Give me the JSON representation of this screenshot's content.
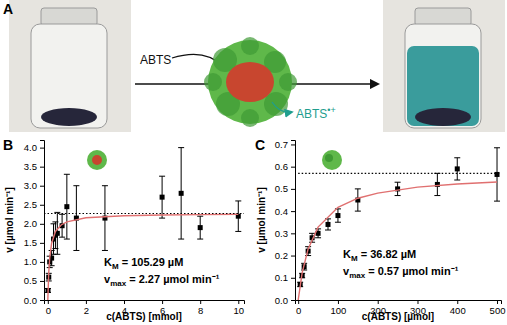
{
  "panel_a": {
    "label": "A",
    "substrate": "ABTS",
    "product": "ABTS",
    "product_charge": "•+"
  },
  "chart_data": [
    {
      "type": "scatter",
      "panel": "B",
      "x_label": "c(ABTS) [mmol]",
      "y_label": "v [µmol min⁻¹]",
      "xlim": [
        -0.2,
        10.3
      ],
      "xticks": [
        0,
        2,
        4,
        6,
        8,
        10
      ],
      "ylim": [
        0,
        4.2
      ],
      "yticks": [
        {
          "value": 0,
          "label": "0.0"
        },
        {
          "value": 0.5,
          "label": "0.5"
        },
        {
          "value": 1,
          "label": "1.0"
        },
        {
          "value": 1.5,
          "label": "1.5"
        },
        {
          "value": 2,
          "label": "2.0"
        },
        {
          "value": 2.5,
          "label": "2.5"
        },
        {
          "value": 3,
          "label": "3.0"
        },
        {
          "value": 3.5,
          "label": "3.5"
        },
        {
          "value": 4,
          "label": "4.0"
        }
      ],
      "grid": false,
      "annotations": [
        {
          "symbol": "K",
          "subscript": "M",
          "text": " = 105.29 µM"
        },
        {
          "symbol": "v",
          "subscript": "max",
          "text": " = 2.27 µmol min⁻¹"
        }
      ],
      "series": [
        {
          "type": "scatter",
          "color": "#000000",
          "marker": "square",
          "x": [
            0.01,
            0.05,
            0.1,
            0.2,
            0.3,
            0.4,
            0.5,
            0.75,
            1,
            1.5,
            3,
            6,
            7,
            8,
            10
          ],
          "values": [
            0.25,
            0.6,
            1.0,
            1.1,
            1.6,
            1.7,
            1.75,
            1.95,
            2.45,
            2.15,
            2.15,
            2.7,
            2.8,
            1.9,
            2.2
          ],
          "errors": [
            0.05,
            0.1,
            0.15,
            0.2,
            0.4,
            0.35,
            0.55,
            0.3,
            0.85,
            0.85,
            0.85,
            0.55,
            1.2,
            0.3,
            0.4
          ]
        },
        {
          "type": "line",
          "color": "#e07070",
          "line_style": "solid",
          "x": [
            0,
            0.05,
            0.1,
            0.2,
            0.4,
            0.7,
            1,
            2,
            4,
            6,
            8,
            10
          ],
          "values": [
            0,
            0.73,
            1.11,
            1.49,
            1.8,
            1.97,
            2.05,
            2.16,
            2.21,
            2.23,
            2.24,
            2.25
          ]
        },
        {
          "type": "line",
          "color": "#000000",
          "line_style": "dotted",
          "x": [
            -0.2,
            10.3
          ],
          "values": [
            2.27,
            2.27
          ]
        }
      ]
    },
    {
      "type": "scatter",
      "panel": "C",
      "x_label": "c(ABTS) [µmol]",
      "y_label": "v [µmol min⁻¹]",
      "xlim": [
        -8,
        510
      ],
      "xticks": [
        0,
        100,
        200,
        300,
        400,
        500
      ],
      "ylim": [
        0,
        0.72
      ],
      "yticks": [
        {
          "value": 0,
          "label": "0.0"
        },
        {
          "value": 0.1,
          "label": "0.1"
        },
        {
          "value": 0.2,
          "label": "0.2"
        },
        {
          "value": 0.3,
          "label": "0.3"
        },
        {
          "value": 0.4,
          "label": "0.4"
        },
        {
          "value": 0.5,
          "label": "0.5"
        },
        {
          "value": 0.6,
          "label": "0.6"
        },
        {
          "value": 0.7,
          "label": "0.7"
        }
      ],
      "grid": false,
      "annotations": [
        {
          "symbol": "K",
          "subscript": "M",
          "text": " = 36.82 µM"
        },
        {
          "symbol": "v",
          "subscript": "max",
          "text": " = 0.57 µmol min⁻¹"
        }
      ],
      "series": [
        {
          "type": "scatter",
          "color": "#000000",
          "marker": "square",
          "x": [
            5,
            10,
            15,
            25,
            35,
            50,
            75,
            100,
            150,
            250,
            350,
            400,
            500
          ],
          "values": [
            0.07,
            0.11,
            0.15,
            0.22,
            0.28,
            0.3,
            0.34,
            0.38,
            0.45,
            0.5,
            0.52,
            0.59,
            0.565
          ],
          "errors": [
            0.01,
            0.01,
            0.015,
            0.02,
            0.02,
            0.02,
            0.025,
            0.03,
            0.05,
            0.03,
            0.05,
            0.05,
            0.12
          ]
        },
        {
          "type": "line",
          "color": "#e07070",
          "line_style": "solid",
          "x": [
            0,
            10,
            25,
            50,
            100,
            150,
            200,
            300,
            400,
            500
          ],
          "values": [
            0,
            0.122,
            0.23,
            0.328,
            0.417,
            0.458,
            0.481,
            0.508,
            0.522,
            0.531
          ]
        },
        {
          "type": "line",
          "color": "#000000",
          "line_style": "dotted",
          "x": [
            0,
            510
          ],
          "values": [
            0.57,
            0.57
          ]
        }
      ]
    }
  ]
}
